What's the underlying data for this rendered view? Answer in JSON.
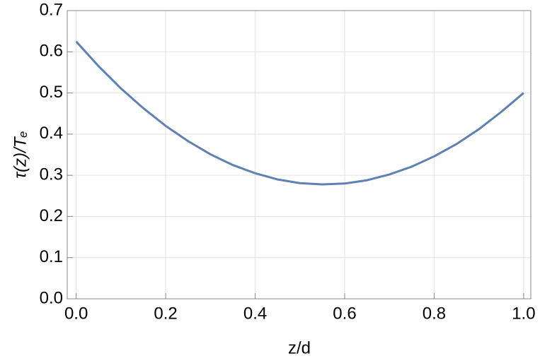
{
  "chart_data": {
    "type": "line",
    "x_label": "z/d",
    "y_label": "τ(z)/Tₑ",
    "x": [
      0,
      0.05,
      0.1,
      0.15,
      0.2,
      0.25,
      0.3,
      0.35,
      0.4,
      0.45,
      0.5,
      0.55,
      0.6,
      0.65,
      0.7,
      0.75,
      0.8,
      0.85,
      0.9,
      0.95,
      1.0
    ],
    "series": [
      {
        "color": "#5e81b5",
        "values": [
          0.625,
          0.565,
          0.511,
          0.463,
          0.42,
          0.383,
          0.351,
          0.325,
          0.305,
          0.29,
          0.281,
          0.278,
          0.28,
          0.288,
          0.302,
          0.321,
          0.346,
          0.376,
          0.412,
          0.454,
          0.5
        ]
      }
    ],
    "xlim": [
      -0.02,
      1.016
    ],
    "ylim": [
      0,
      0.7
    ],
    "xticks": [
      {
        "value": 0,
        "label": "0.0"
      },
      0.2,
      0.4,
      0.6,
      0.8,
      {
        "value": 1,
        "label": "1.0"
      }
    ],
    "yticks": [
      {
        "value": 0,
        "label": "0.0"
      },
      0.1,
      0.2,
      0.3,
      0.4,
      0.5,
      0.6,
      0.7
    ],
    "grid": true
  }
}
